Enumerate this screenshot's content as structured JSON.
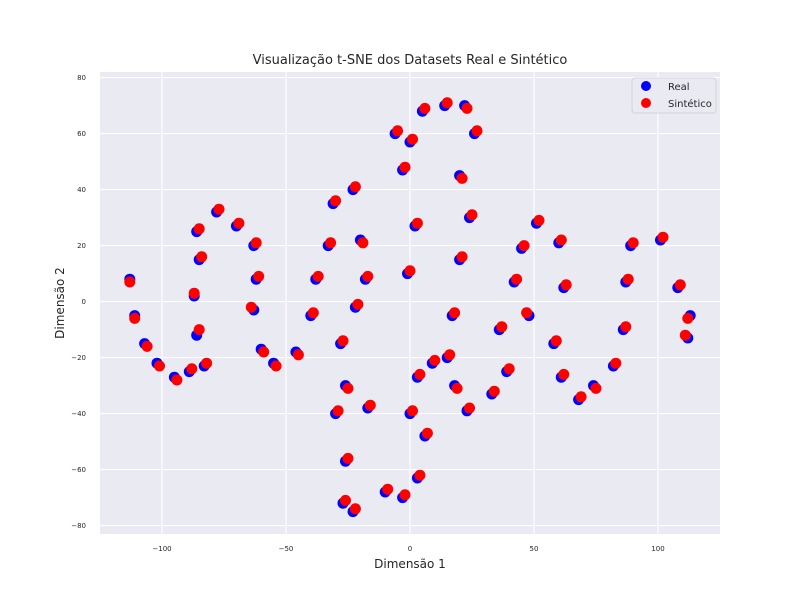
{
  "chart_data": {
    "type": "scatter",
    "title": "Visualização t-SNE dos Datasets Real e Sintético",
    "xlabel": "Dimensão 1",
    "ylabel": "Dimensão 2",
    "xlim": [
      -125,
      125
    ],
    "ylim": [
      -83,
      82
    ],
    "x_ticks": [
      -100,
      -50,
      0,
      50,
      100
    ],
    "y_ticks": [
      -80,
      -60,
      -40,
      -20,
      0,
      20,
      40,
      60,
      80
    ],
    "x_tick_labels": [
      "−100",
      "−50",
      "0",
      "50",
      "100"
    ],
    "y_tick_labels": [
      "−80",
      "−60",
      "−40",
      "−20",
      "0",
      "20",
      "40",
      "60",
      "80"
    ],
    "grid": true,
    "legend_position": "top-right",
    "background": "#eaeaf2",
    "series": [
      {
        "name": "Real",
        "color": "#0000ff",
        "points": [
          [
            -113,
            8
          ],
          [
            -111,
            -5
          ],
          [
            -107,
            -15
          ],
          [
            -102,
            -22
          ],
          [
            -95,
            -27
          ],
          [
            -89,
            -25
          ],
          [
            -86,
            -12
          ],
          [
            -87,
            2
          ],
          [
            -85,
            15
          ],
          [
            -86,
            25
          ],
          [
            -78,
            32
          ],
          [
            -70,
            27
          ],
          [
            -63,
            20
          ],
          [
            -62,
            8
          ],
          [
            -63,
            -3
          ],
          [
            -60,
            -17
          ],
          [
            -55,
            -22
          ],
          [
            -46,
            -18
          ],
          [
            -40,
            -5
          ],
          [
            -38,
            8
          ],
          [
            -33,
            20
          ],
          [
            -31,
            35
          ],
          [
            -23,
            40
          ],
          [
            -20,
            22
          ],
          [
            -18,
            8
          ],
          [
            -22,
            -2
          ],
          [
            -26,
            -30
          ],
          [
            -30,
            -40
          ],
          [
            -26,
            -57
          ],
          [
            -27,
            -72
          ],
          [
            -23,
            -75
          ],
          [
            -10,
            -68
          ],
          [
            -3,
            -70
          ],
          [
            3,
            -63
          ],
          [
            6,
            -48
          ],
          [
            0,
            -40
          ],
          [
            3,
            -27
          ],
          [
            -1,
            10
          ],
          [
            2,
            27
          ],
          [
            -3,
            47
          ],
          [
            0,
            57
          ],
          [
            -6,
            60
          ],
          [
            5,
            68
          ],
          [
            14,
            70
          ],
          [
            22,
            70
          ],
          [
            26,
            60
          ],
          [
            20,
            45
          ],
          [
            24,
            30
          ],
          [
            20,
            15
          ],
          [
            17,
            -5
          ],
          [
            15,
            -20
          ],
          [
            18,
            -30
          ],
          [
            23,
            -39
          ],
          [
            33,
            -33
          ],
          [
            39,
            -25
          ],
          [
            36,
            -10
          ],
          [
            42,
            7
          ],
          [
            45,
            19
          ],
          [
            51,
            28
          ],
          [
            60,
            21
          ],
          [
            62,
            5
          ],
          [
            58,
            -15
          ],
          [
            61,
            -27
          ],
          [
            68,
            -35
          ],
          [
            74,
            -30
          ],
          [
            82,
            -23
          ],
          [
            86,
            -10
          ],
          [
            87,
            7
          ],
          [
            89,
            20
          ],
          [
            101,
            22
          ],
          [
            108,
            5
          ],
          [
            113,
            -5
          ],
          [
            112,
            -13
          ],
          [
            -83,
            -23
          ],
          [
            -28,
            -15
          ],
          [
            48,
            -5
          ],
          [
            -17,
            -38
          ],
          [
            9,
            -22
          ]
        ]
      },
      {
        "name": "Sintético",
        "color": "#ff0000",
        "points": [
          [
            -113,
            7
          ],
          [
            -111,
            -6
          ],
          [
            -106,
            -16
          ],
          [
            -101,
            -23
          ],
          [
            -94,
            -28
          ],
          [
            -88,
            -24
          ],
          [
            -85,
            -10
          ],
          [
            -87,
            3
          ],
          [
            -84,
            16
          ],
          [
            -85,
            26
          ],
          [
            -77,
            33
          ],
          [
            -69,
            28
          ],
          [
            -62,
            21
          ],
          [
            -61,
            9
          ],
          [
            -64,
            -2
          ],
          [
            -59,
            -18
          ],
          [
            -54,
            -23
          ],
          [
            -45,
            -19
          ],
          [
            -39,
            -4
          ],
          [
            -37,
            9
          ],
          [
            -32,
            21
          ],
          [
            -30,
            36
          ],
          [
            -22,
            41
          ],
          [
            -19,
            21
          ],
          [
            -17,
            9
          ],
          [
            -21,
            -1
          ],
          [
            -25,
            -31
          ],
          [
            -29,
            -39
          ],
          [
            -25,
            -56
          ],
          [
            -26,
            -71
          ],
          [
            -22,
            -74
          ],
          [
            -9,
            -67
          ],
          [
            -2,
            -69
          ],
          [
            4,
            -62
          ],
          [
            7,
            -47
          ],
          [
            1,
            -39
          ],
          [
            4,
            -26
          ],
          [
            0,
            11
          ],
          [
            3,
            28
          ],
          [
            -2,
            48
          ],
          [
            1,
            58
          ],
          [
            -5,
            61
          ],
          [
            6,
            69
          ],
          [
            15,
            71
          ],
          [
            23,
            69
          ],
          [
            27,
            61
          ],
          [
            21,
            44
          ],
          [
            25,
            31
          ],
          [
            21,
            16
          ],
          [
            18,
            -4
          ],
          [
            16,
            -19
          ],
          [
            19,
            -31
          ],
          [
            24,
            -38
          ],
          [
            34,
            -32
          ],
          [
            40,
            -24
          ],
          [
            37,
            -9
          ],
          [
            43,
            8
          ],
          [
            46,
            20
          ],
          [
            52,
            29
          ],
          [
            61,
            22
          ],
          [
            63,
            6
          ],
          [
            59,
            -14
          ],
          [
            62,
            -26
          ],
          [
            69,
            -34
          ],
          [
            75,
            -31
          ],
          [
            83,
            -22
          ],
          [
            87,
            -9
          ],
          [
            88,
            8
          ],
          [
            90,
            21
          ],
          [
            102,
            23
          ],
          [
            109,
            6
          ],
          [
            112,
            -6
          ],
          [
            111,
            -12
          ],
          [
            -82,
            -22
          ],
          [
            -27,
            -14
          ],
          [
            47,
            -4
          ],
          [
            -16,
            -37
          ],
          [
            10,
            -21
          ]
        ]
      }
    ]
  }
}
